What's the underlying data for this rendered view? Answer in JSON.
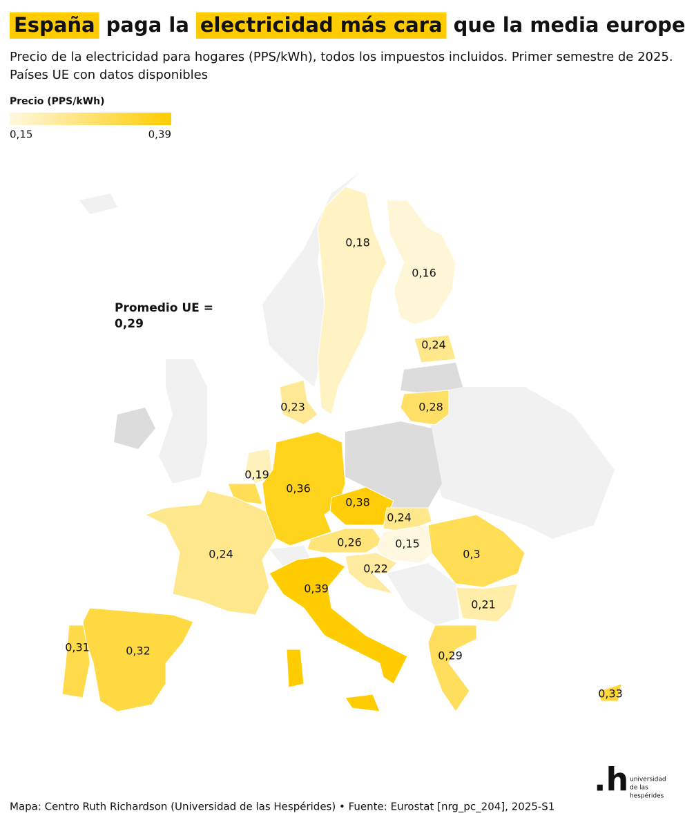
{
  "chart_data": {
    "type": "choropleth",
    "title": [
      "España",
      "paga la",
      "electricidad más cara",
      "que la media europea"
    ],
    "title_highlighted": [
      0,
      2
    ],
    "highlight_color": "#ffcc00",
    "subtitle": "Precio de la electricidad para hogares (PPS/kWh), todos los impuestos incluidos. Primer semestre de 2025.",
    "subtitle2": "Países UE con datos disponibles",
    "legend_title": "Precio (PPS/kWh)",
    "colorscale": {
      "lim": [
        0.15,
        0.39
      ],
      "labels": [
        "0,15",
        "0,39"
      ],
      "colors": [
        "#fff8e0",
        "#ffcc00"
      ]
    },
    "values": [
      0.18,
      0.16,
      0.24,
      0.28,
      0.23,
      0.19,
      0.3,
      0.36,
      0.38,
      0.24,
      0.26,
      0.15,
      0.3,
      0.24,
      0.22,
      0.39,
      0.21,
      0.31,
      0.32,
      0.29,
      0.33
    ],
    "value_labels": [
      "0,18",
      "0,16",
      "0,24",
      "0,28",
      "0,23",
      "0,19",
      null,
      "0,36",
      "0,38",
      "0,24",
      "0,26",
      "0,15",
      "0,3",
      "0,24",
      "0,22",
      "0,39",
      "0,21",
      "0,31",
      "0,32",
      "0,29",
      "0,33"
    ],
    "nodata_color": "#dcdcdc",
    "annotation": [
      "Promedio UE =",
      "0,29"
    ],
    "source": "Mapa: Centro Ruth Richardson (Universidad de las Hespérides) • Fuente: Eurostat [nrg_pc_204], 2025-S1",
    "logo": {
      "mark": ".h",
      "text": [
        "universidad",
        "de las",
        "hespérides"
      ]
    }
  }
}
